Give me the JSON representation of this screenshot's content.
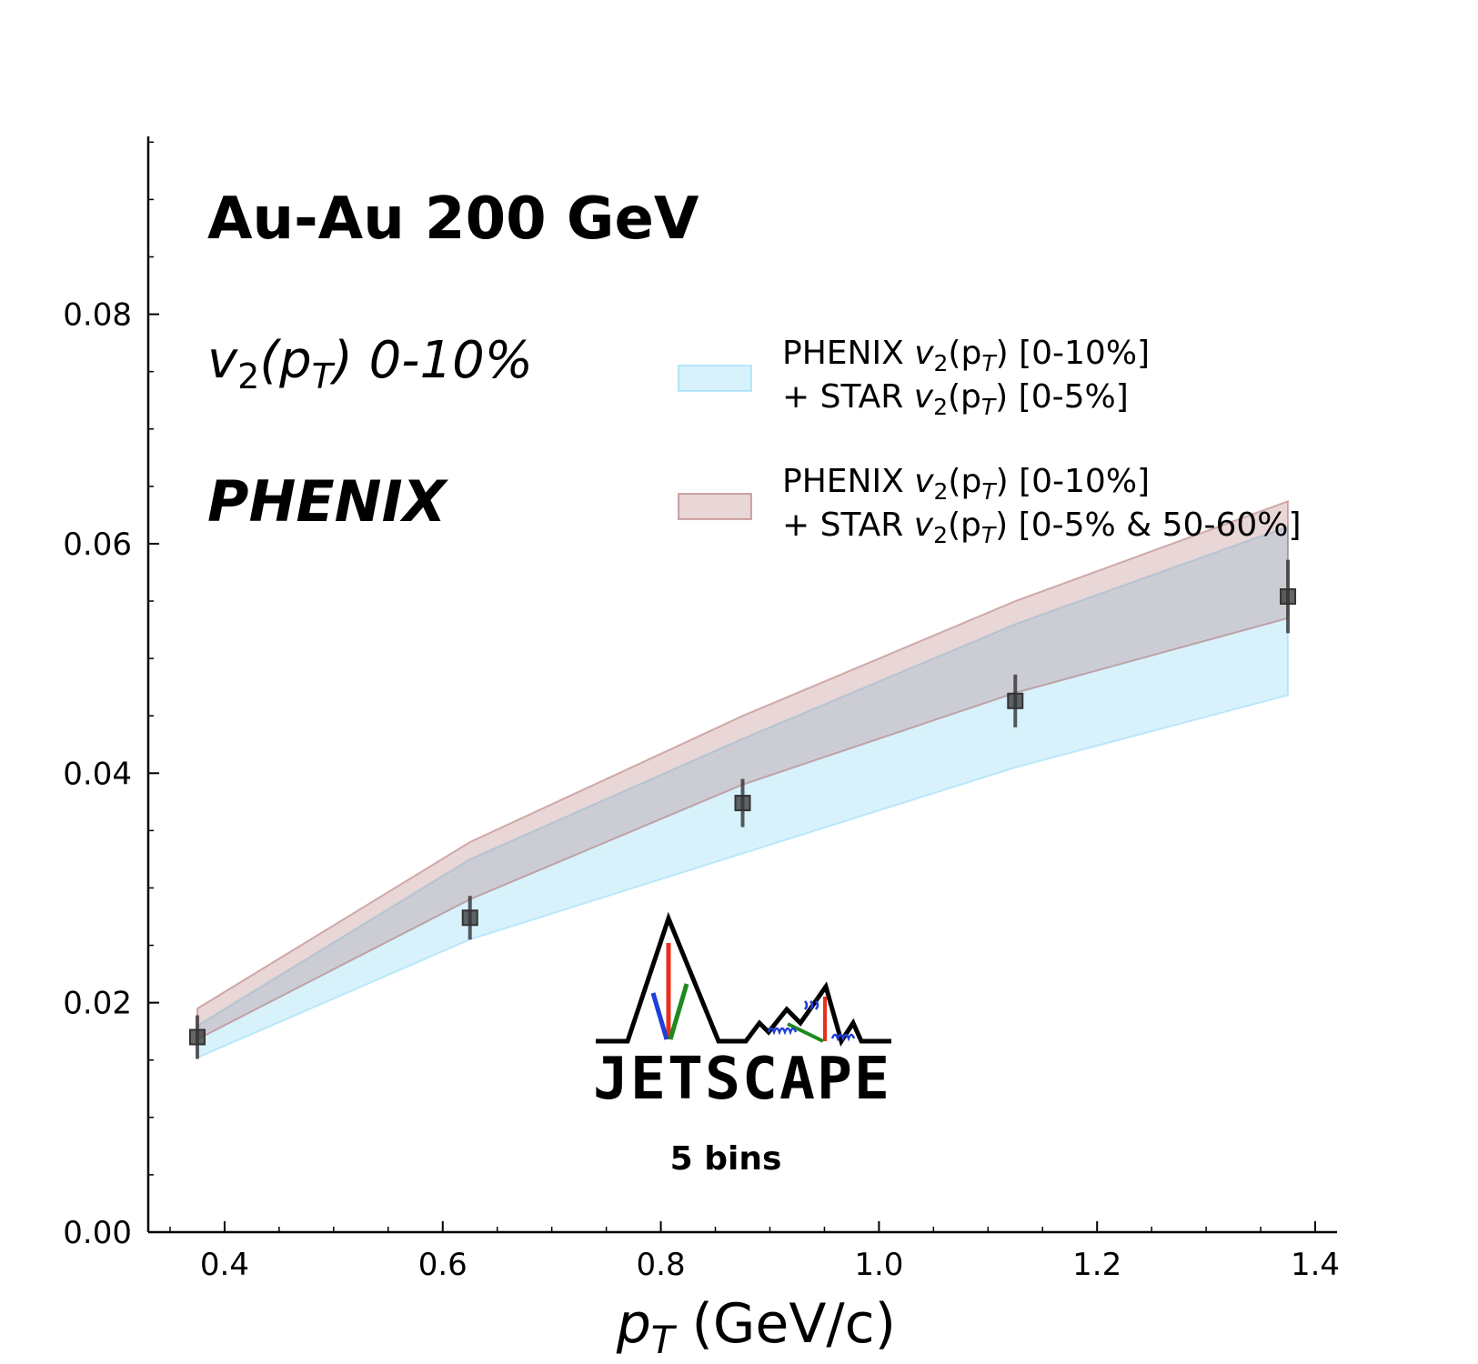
{
  "chart_data": {
    "type": "area",
    "title": "Au-Au 200 GeV",
    "subtitle_parts": {
      "v": "v",
      "sub2": "2",
      "open": "(p",
      "subT": "T",
      "close": ") 0-10%"
    },
    "experiment": "PHENIX",
    "xlabel_parts": {
      "p": "p",
      "subT": "T",
      "rest": " (GeV/c)"
    },
    "ylabel": "",
    "xlim": [
      0.33,
      1.42
    ],
    "ylim": [
      0.0,
      0.0955
    ],
    "x_ticks": [
      0.4,
      0.6,
      0.8,
      1.0,
      1.2,
      1.4
    ],
    "x_tick_labels": [
      "0.4",
      "0.6",
      "0.8",
      "1.0",
      "1.2",
      "1.4"
    ],
    "y_ticks": [
      0.0,
      0.02,
      0.04,
      0.06,
      0.08
    ],
    "y_tick_labels": [
      "0.00",
      "0.02",
      "0.04",
      "0.06",
      "0.08"
    ],
    "x_minor_step": 0.05,
    "y_minor_step": 0.005,
    "bands": [
      {
        "name": "PHENIX v2(pT) [0-10%] + STAR v2(pT) [0-5%]",
        "legend_line1": {
          "pre": "PHENIX ",
          "v": "v",
          "sub2": "2",
          "open": "(p",
          "subT": "T",
          "post": ") [0-10%]"
        },
        "legend_line2": {
          "pre": "+ STAR ",
          "v": "v",
          "sub2": "2",
          "open": "(p",
          "subT": "T",
          "post": ") [0-5%]"
        },
        "fill": "#7fd4f5",
        "fill_opacity": 0.3,
        "stroke": "#7fd4f5",
        "x": [
          0.375,
          0.625,
          0.875,
          1.125,
          1.375
        ],
        "lower": [
          0.0152,
          0.0255,
          0.033,
          0.0405,
          0.0468
        ],
        "upper": [
          0.018,
          0.0325,
          0.043,
          0.053,
          0.0615
        ]
      },
      {
        "name": "PHENIX v2(pT) [0-10%] + STAR v2(pT) [0-5% & 50-60%]",
        "legend_line1": {
          "pre": "PHENIX ",
          "v": "v",
          "sub2": "2",
          "open": "(p",
          "subT": "T",
          "post": ") [0-10%]"
        },
        "legend_line2": {
          "pre": "+ STAR ",
          "v": "v",
          "sub2": "2",
          "open": "(p",
          "subT": "T",
          "post": ") [0-5% & 50-60%]"
        },
        "fill": "#a75a5a",
        "fill_opacity": 0.25,
        "stroke": "#a75a5a",
        "x": [
          0.375,
          0.625,
          0.875,
          1.125,
          1.375
        ],
        "lower": [
          0.0168,
          0.029,
          0.039,
          0.047,
          0.0535
        ],
        "upper": [
          0.0195,
          0.034,
          0.045,
          0.055,
          0.0637
        ]
      }
    ],
    "points": {
      "name": "PHENIX data",
      "color": "#333333",
      "x": [
        0.375,
        0.625,
        0.875,
        1.125,
        1.375
      ],
      "y": [
        0.017,
        0.0274,
        0.0374,
        0.0463,
        0.0554
      ],
      "err": [
        0.0019,
        0.0019,
        0.0021,
        0.0023,
        0.0032
      ]
    }
  },
  "logo": {
    "text": "JETSCAPE",
    "caption": "5 bins"
  }
}
